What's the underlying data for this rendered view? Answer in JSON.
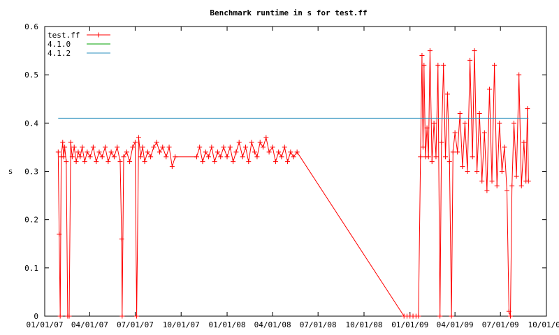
{
  "chart_data": {
    "type": "line",
    "title": "Benchmark runtime in s for test.ff",
    "xlabel": "",
    "ylabel": "s",
    "xlim": [
      "2007-01-01",
      "2009-10-01"
    ],
    "ylim": [
      0,
      0.6
    ],
    "x_ticks": [
      "01/01/07",
      "04/01/07",
      "07/01/07",
      "10/01/07",
      "01/01/08",
      "04/01/08",
      "07/01/08",
      "10/01/08",
      "01/01/09",
      "04/01/09",
      "07/01/09",
      "10/01/09"
    ],
    "y_ticks": [
      "0",
      "0.1",
      "0.2",
      "0.3",
      "0.4",
      "0.5",
      "0.6"
    ],
    "grid": false,
    "legend_position": "top-left",
    "series": [
      {
        "name": "test.ff",
        "color": "#ff0000",
        "marker": "plus",
        "points": [
          [
            "2007-01-28",
            0.34
          ],
          [
            "2007-01-30",
            0.17
          ],
          [
            "2007-02-01",
            0.0
          ],
          [
            "2007-02-03",
            0.33
          ],
          [
            "2007-02-06",
            0.36
          ],
          [
            "2007-02-08",
            0.33
          ],
          [
            "2007-02-10",
            0.35
          ],
          [
            "2007-02-13",
            0.32
          ],
          [
            "2007-02-16",
            0.0
          ],
          [
            "2007-02-19",
            0.0
          ],
          [
            "2007-02-22",
            0.36
          ],
          [
            "2007-02-25",
            0.33
          ],
          [
            "2007-03-01",
            0.35
          ],
          [
            "2007-03-05",
            0.32
          ],
          [
            "2007-03-09",
            0.34
          ],
          [
            "2007-03-13",
            0.33
          ],
          [
            "2007-03-17",
            0.35
          ],
          [
            "2007-03-22",
            0.32
          ],
          [
            "2007-03-27",
            0.34
          ],
          [
            "2007-04-02",
            0.33
          ],
          [
            "2007-04-08",
            0.35
          ],
          [
            "2007-04-14",
            0.32
          ],
          [
            "2007-04-20",
            0.34
          ],
          [
            "2007-04-26",
            0.33
          ],
          [
            "2007-05-02",
            0.35
          ],
          [
            "2007-05-08",
            0.32
          ],
          [
            "2007-05-14",
            0.34
          ],
          [
            "2007-05-20",
            0.33
          ],
          [
            "2007-05-26",
            0.35
          ],
          [
            "2007-06-01",
            0.32
          ],
          [
            "2007-06-04",
            0.16
          ],
          [
            "2007-06-05",
            0.0
          ],
          [
            "2007-06-08",
            0.33
          ],
          [
            "2007-06-14",
            0.34
          ],
          [
            "2007-06-20",
            0.32
          ],
          [
            "2007-06-26",
            0.35
          ],
          [
            "2007-07-01",
            0.36
          ],
          [
            "2007-07-04",
            0.0
          ],
          [
            "2007-07-08",
            0.37
          ],
          [
            "2007-07-12",
            0.33
          ],
          [
            "2007-07-16",
            0.35
          ],
          [
            "2007-07-20",
            0.32
          ],
          [
            "2007-07-26",
            0.34
          ],
          [
            "2007-08-01",
            0.33
          ],
          [
            "2007-08-07",
            0.35
          ],
          [
            "2007-08-13",
            0.36
          ],
          [
            "2007-08-19",
            0.34
          ],
          [
            "2007-08-25",
            0.35
          ],
          [
            "2007-09-01",
            0.33
          ],
          [
            "2007-09-07",
            0.35
          ],
          [
            "2007-09-13",
            0.31
          ],
          [
            "2007-09-19",
            0.33
          ],
          [
            "2007-11-01",
            0.33
          ],
          [
            "2007-11-07",
            0.35
          ],
          [
            "2007-11-13",
            0.32
          ],
          [
            "2007-11-19",
            0.34
          ],
          [
            "2007-11-25",
            0.33
          ],
          [
            "2007-12-01",
            0.35
          ],
          [
            "2007-12-07",
            0.32
          ],
          [
            "2007-12-13",
            0.34
          ],
          [
            "2007-12-19",
            0.33
          ],
          [
            "2007-12-25",
            0.35
          ],
          [
            "2008-01-01",
            0.33
          ],
          [
            "2008-01-07",
            0.35
          ],
          [
            "2008-01-13",
            0.32
          ],
          [
            "2008-01-19",
            0.34
          ],
          [
            "2008-01-25",
            0.36
          ],
          [
            "2008-02-01",
            0.33
          ],
          [
            "2008-02-07",
            0.35
          ],
          [
            "2008-02-13",
            0.32
          ],
          [
            "2008-02-19",
            0.36
          ],
          [
            "2008-02-25",
            0.34
          ],
          [
            "2008-03-01",
            0.33
          ],
          [
            "2008-03-07",
            0.36
          ],
          [
            "2008-03-13",
            0.35
          ],
          [
            "2008-03-19",
            0.37
          ],
          [
            "2008-03-25",
            0.34
          ],
          [
            "2008-04-01",
            0.35
          ],
          [
            "2008-04-07",
            0.32
          ],
          [
            "2008-04-13",
            0.34
          ],
          [
            "2008-04-19",
            0.33
          ],
          [
            "2008-04-25",
            0.35
          ],
          [
            "2008-05-01",
            0.32
          ],
          [
            "2008-05-07",
            0.34
          ],
          [
            "2008-05-13",
            0.33
          ],
          [
            "2008-05-20",
            0.34
          ],
          [
            "2008-12-20",
            0.0
          ],
          [
            "2008-12-26",
            0.0
          ],
          [
            "2009-01-01",
            0.0
          ],
          [
            "2009-01-07",
            0.0
          ],
          [
            "2009-01-13",
            0.0
          ],
          [
            "2009-01-18",
            0.0
          ],
          [
            "2009-01-22",
            0.33
          ],
          [
            "2009-01-25",
            0.54
          ],
          [
            "2009-01-27",
            0.35
          ],
          [
            "2009-01-29",
            0.52
          ],
          [
            "2009-02-01",
            0.33
          ],
          [
            "2009-02-04",
            0.39
          ],
          [
            "2009-02-07",
            0.33
          ],
          [
            "2009-02-10",
            0.55
          ],
          [
            "2009-02-14",
            0.32
          ],
          [
            "2009-02-18",
            0.4
          ],
          [
            "2009-02-22",
            0.33
          ],
          [
            "2009-02-26",
            0.52
          ],
          [
            "2009-03-02",
            0.0
          ],
          [
            "2009-03-05",
            0.36
          ],
          [
            "2009-03-09",
            0.52
          ],
          [
            "2009-03-13",
            0.33
          ],
          [
            "2009-03-17",
            0.46
          ],
          [
            "2009-03-21",
            0.32
          ],
          [
            "2009-03-25",
            0.0
          ],
          [
            "2009-03-28",
            0.34
          ],
          [
            "2009-04-01",
            0.38
          ],
          [
            "2009-04-06",
            0.34
          ],
          [
            "2009-04-11",
            0.42
          ],
          [
            "2009-04-16",
            0.31
          ],
          [
            "2009-04-21",
            0.4
          ],
          [
            "2009-04-26",
            0.3
          ],
          [
            "2009-05-01",
            0.53
          ],
          [
            "2009-05-06",
            0.33
          ],
          [
            "2009-05-10",
            0.55
          ],
          [
            "2009-05-15",
            0.3
          ],
          [
            "2009-05-20",
            0.42
          ],
          [
            "2009-05-25",
            0.28
          ],
          [
            "2009-05-30",
            0.38
          ],
          [
            "2009-06-04",
            0.26
          ],
          [
            "2009-06-09",
            0.47
          ],
          [
            "2009-06-14",
            0.28
          ],
          [
            "2009-06-19",
            0.52
          ],
          [
            "2009-06-24",
            0.27
          ],
          [
            "2009-06-29",
            0.4
          ],
          [
            "2009-07-04",
            0.3
          ],
          [
            "2009-07-09",
            0.35
          ],
          [
            "2009-07-14",
            0.26
          ],
          [
            "2009-07-18",
            0.01
          ],
          [
            "2009-07-21",
            0.0
          ],
          [
            "2009-07-24",
            0.27
          ],
          [
            "2009-07-28",
            0.4
          ],
          [
            "2009-08-02",
            0.29
          ],
          [
            "2009-08-07",
            0.5
          ],
          [
            "2009-08-12",
            0.27
          ],
          [
            "2009-08-17",
            0.36
          ],
          [
            "2009-08-21",
            0.28
          ],
          [
            "2009-08-24",
            0.43
          ],
          [
            "2009-08-26",
            0.28
          ]
        ]
      },
      {
        "name": "4.1.0",
        "color": "#00a000",
        "marker": "none",
        "points": []
      },
      {
        "name": "4.1.2",
        "color": "#2a8fbd",
        "marker": "none",
        "points": [
          [
            "2007-01-28",
            0.41
          ],
          [
            "2009-08-26",
            0.41
          ]
        ]
      }
    ]
  }
}
